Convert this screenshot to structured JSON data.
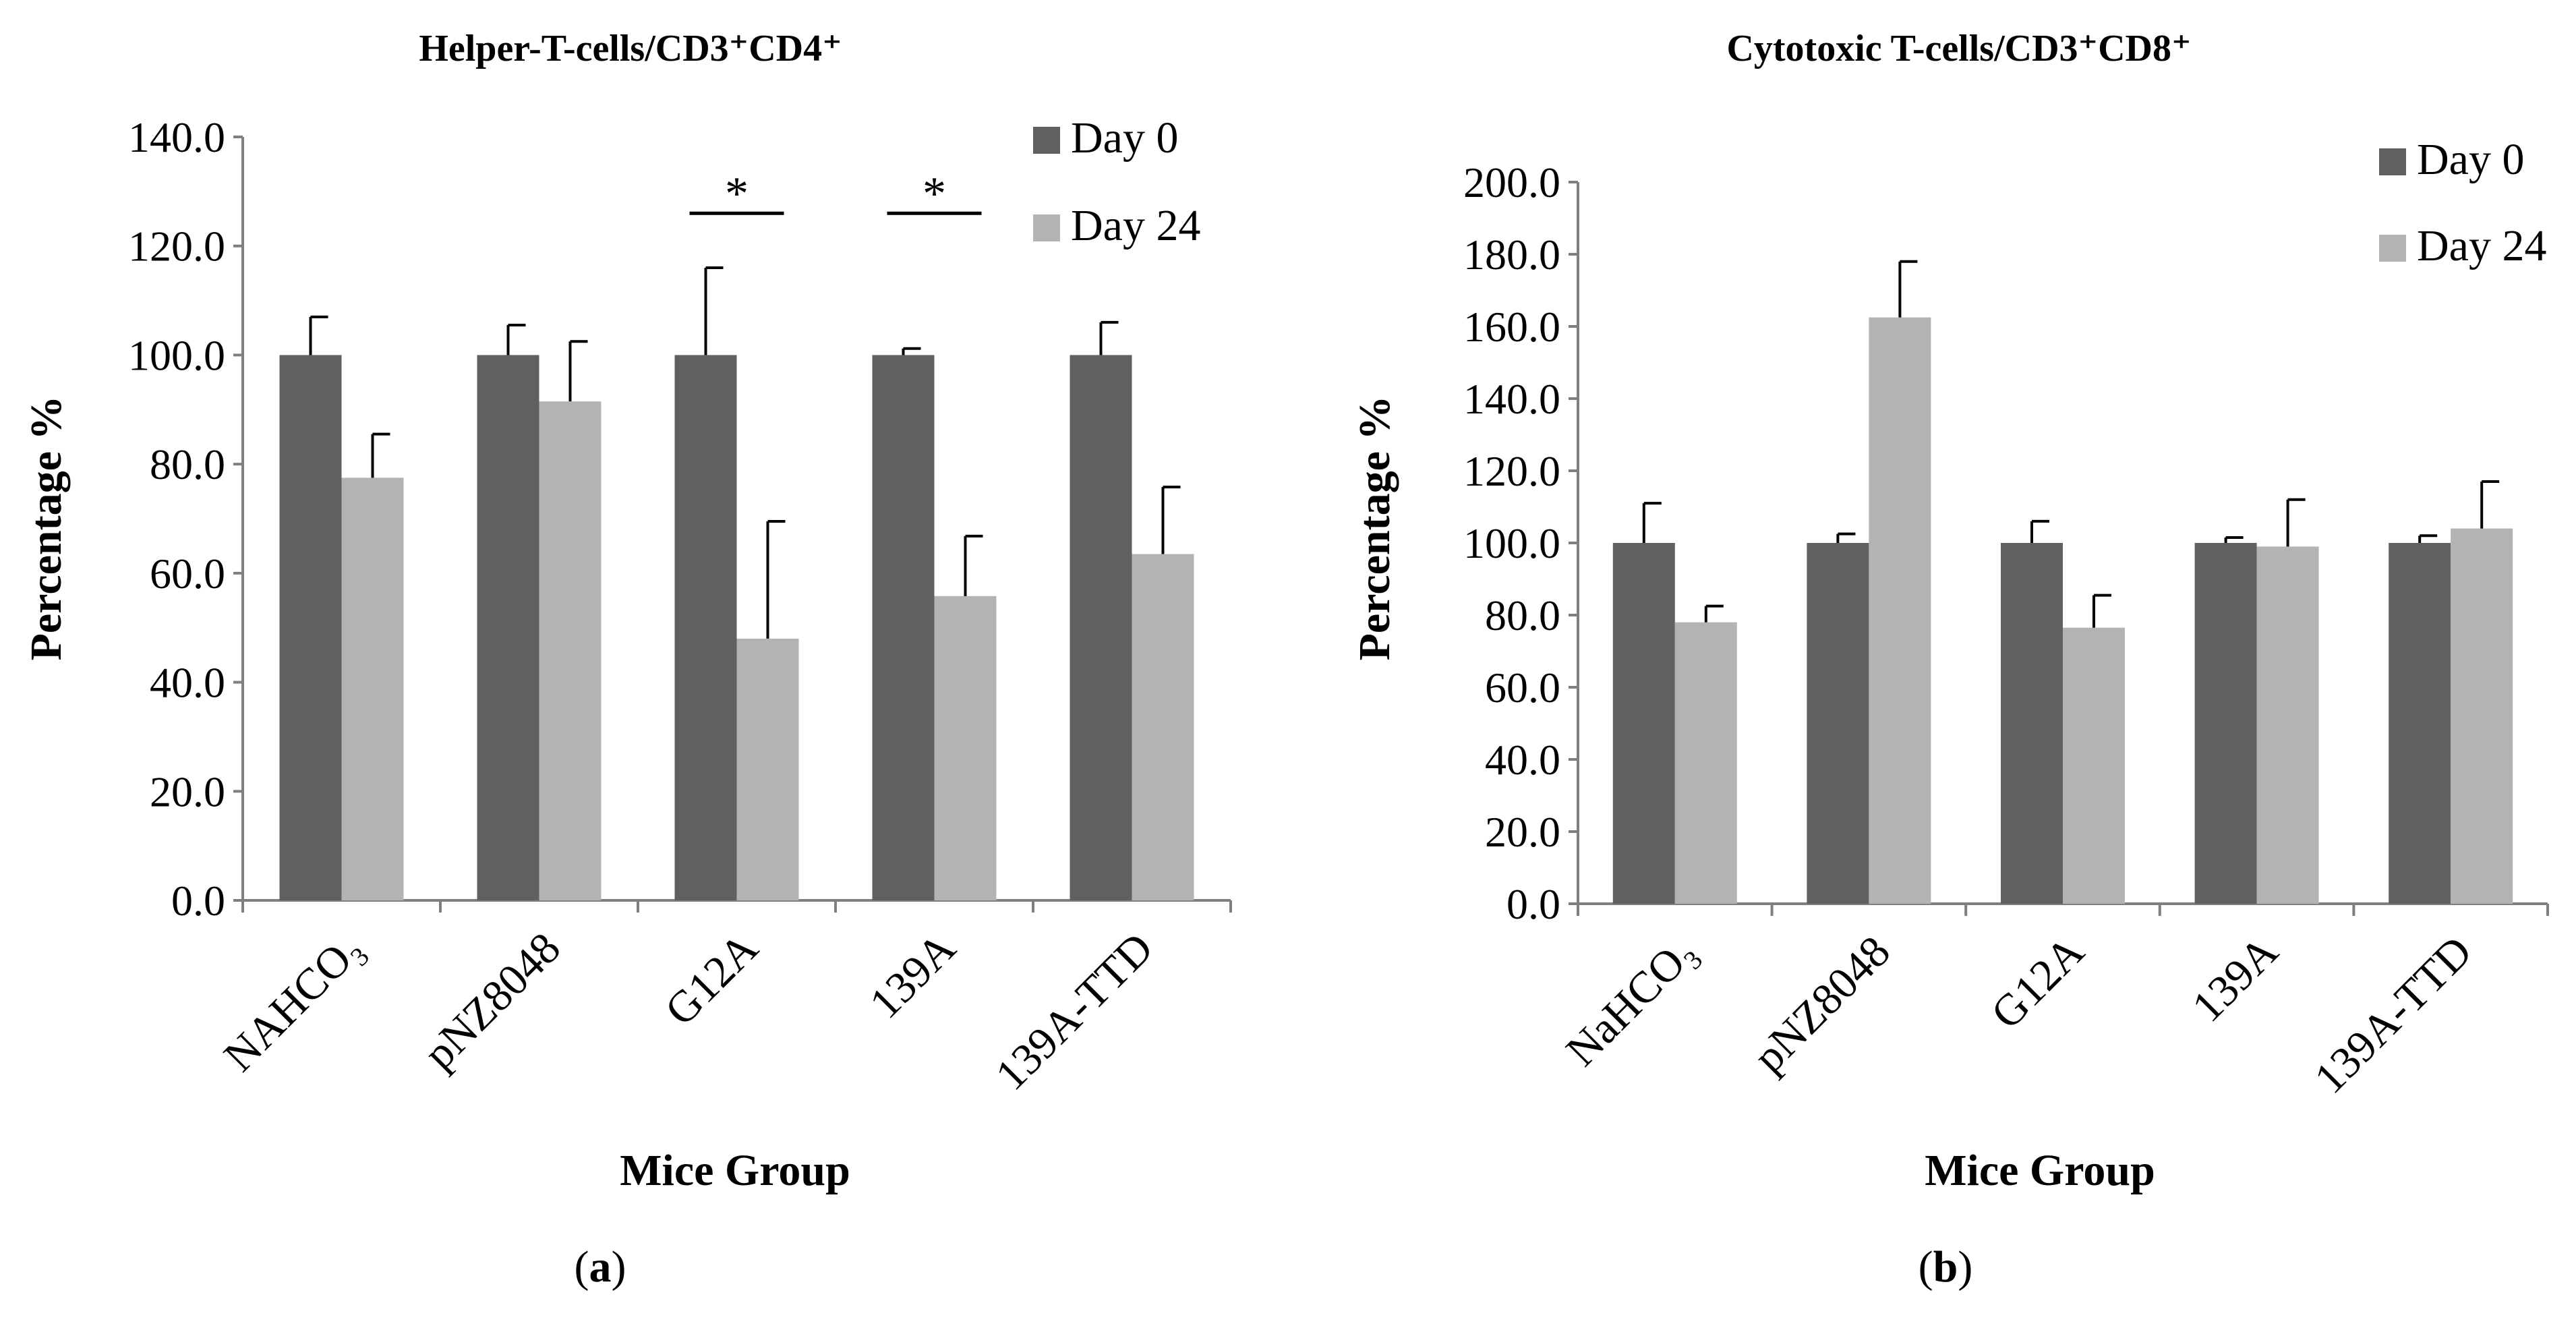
{
  "figure": {
    "legend": [
      "Day 0",
      "Day 24"
    ],
    "colors": {
      "Day 0": "#606060",
      "Day 24": "#b3b3b3"
    }
  },
  "chart_data": [
    {
      "type": "bar",
      "panel_label": "(a)",
      "panel_letter": "a",
      "title": "Helper-T-cells/CD3⁺CD4⁺",
      "xlabel": "Mice Group",
      "ylabel": "Percentage %",
      "ylim": [
        0,
        140
      ],
      "yticks": [
        "0.0",
        "20.0",
        "40.0",
        "60.0",
        "80.0",
        "100.0",
        "120.0",
        "140.0"
      ],
      "categories": [
        "NAHCO₃",
        "pNZ8048",
        "G12A",
        "139A",
        "139A-TTD"
      ],
      "series": [
        {
          "name": "Day 0",
          "values": [
            100.0,
            100.0,
            100.0,
            100.0,
            100.0
          ],
          "errors": [
            7.0,
            5.5,
            16.0,
            1.2,
            6.0
          ]
        },
        {
          "name": "Day 24",
          "values": [
            77.5,
            91.5,
            48.0,
            55.8,
            63.5
          ],
          "errors": [
            8.0,
            11.0,
            21.5,
            11.0,
            12.3
          ]
        }
      ],
      "annotations": [
        {
          "text": "*",
          "category": "G12A"
        },
        {
          "text": "*",
          "category": "139A"
        }
      ],
      "legend_position": "top-right"
    },
    {
      "type": "bar",
      "panel_label": "(b)",
      "panel_letter": "b",
      "title": "Cytotoxic T-cells/CD3⁺CD8⁺",
      "xlabel": "Mice Group",
      "ylabel": "Percentage %",
      "ylim": [
        0,
        200
      ],
      "yticks": [
        "0.0",
        "20.0",
        "40.0",
        "60.0",
        "80.0",
        "100.0",
        "120.0",
        "140.0",
        "160.0",
        "180.0",
        "200.0"
      ],
      "categories": [
        "NaHCO₃",
        "pNZ8048",
        "G12A",
        "139A",
        "139A-TTD"
      ],
      "series": [
        {
          "name": "Day 0",
          "values": [
            100.0,
            100.0,
            100.0,
            100.0,
            100.0
          ],
          "errors": [
            11.0,
            2.5,
            6.0,
            1.5,
            2.0
          ]
        },
        {
          "name": "Day 24",
          "values": [
            78.0,
            162.5,
            76.5,
            99.0,
            104.0
          ],
          "errors": [
            4.5,
            15.5,
            9.0,
            13.0,
            13.0
          ]
        }
      ],
      "annotations": [],
      "legend_position": "top-right"
    }
  ]
}
